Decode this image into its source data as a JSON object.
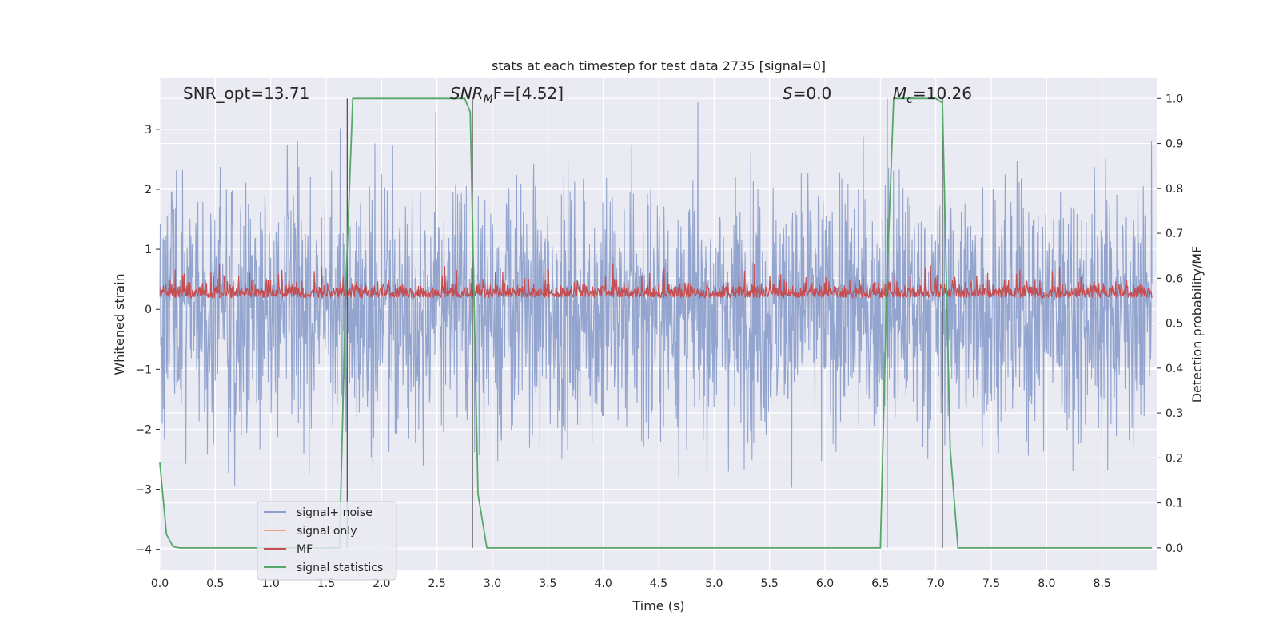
{
  "chart_data": {
    "type": "line",
    "title": "stats at each timestep for test data 2735 [signal=0]",
    "xlabel": "Time (s)",
    "ylabel": "Whitened strain",
    "ylabel_right": "Detection probability/MF",
    "xlim": [
      0.0,
      9.0
    ],
    "ylim": [
      -4.35,
      3.85
    ],
    "ylim_right": [
      -0.05,
      1.045
    ],
    "x_ticks": [
      "0.0",
      "0.5",
      "1.0",
      "1.5",
      "2.0",
      "2.5",
      "3.0",
      "3.5",
      "4.0",
      "4.5",
      "5.0",
      "5.5",
      "6.0",
      "6.5",
      "7.0",
      "7.5",
      "8.0",
      "8.5"
    ],
    "y_ticks": [
      "3",
      "2",
      "1",
      "0",
      "−1",
      "−2",
      "−3",
      "−4"
    ],
    "y_ticks_right": [
      "1.0",
      "0.9",
      "0.8",
      "0.7",
      "0.6",
      "0.5",
      "0.4",
      "0.3",
      "0.2",
      "0.1",
      "0.0"
    ],
    "grid": true,
    "legend_position": "lower-left",
    "annotations": [
      {
        "id": "snr-opt",
        "text": "SNR_opt=13.71"
      },
      {
        "id": "snr-mf",
        "text": "SNR_MF=[4.52]",
        "base": "SNR",
        "sub": "M",
        "suffix": "F=[4.52]"
      },
      {
        "id": "s-val",
        "text": "S=0.0",
        "italic": "S",
        "suffix": "=0.0"
      },
      {
        "id": "mc-val",
        "text": "M_c=10.26",
        "italic": "M",
        "sub": "c",
        "suffix": "=10.26"
      }
    ],
    "series": [
      {
        "name": "signal+ noise",
        "color": "#8ea1cc",
        "axis": "left",
        "description": "whitened noisy strain, approx. std 1 over 0–9 s"
      },
      {
        "name": "signal only",
        "color": "#e8a383",
        "axis": "left",
        "values": []
      },
      {
        "name": "MF",
        "color": "#c44e52",
        "axis": "left",
        "description": "matched filter output oscillating around 0.25"
      },
      {
        "name": "signal statistics",
        "color": "#55a868",
        "axis": "right",
        "x": [
          0.0,
          0.06,
          0.12,
          0.18,
          1.62,
          1.68,
          1.74,
          2.75,
          2.8,
          2.87,
          2.95,
          6.5,
          6.56,
          6.62,
          7.0,
          7.06,
          7.13,
          7.2,
          8.95
        ],
        "y": [
          0.19,
          0.03,
          0.0025,
          0.0,
          0.0,
          0.6,
          1.0,
          1.0,
          0.97,
          0.12,
          0.0,
          0.0,
          0.6,
          1.0,
          1.0,
          0.99,
          0.22,
          0.0,
          0.0
        ]
      }
    ],
    "vertical_lines_x": [
      1.69,
      2.82,
      6.56,
      7.06
    ],
    "vertical_lines_right_range": [
      0.0,
      1.0
    ]
  }
}
